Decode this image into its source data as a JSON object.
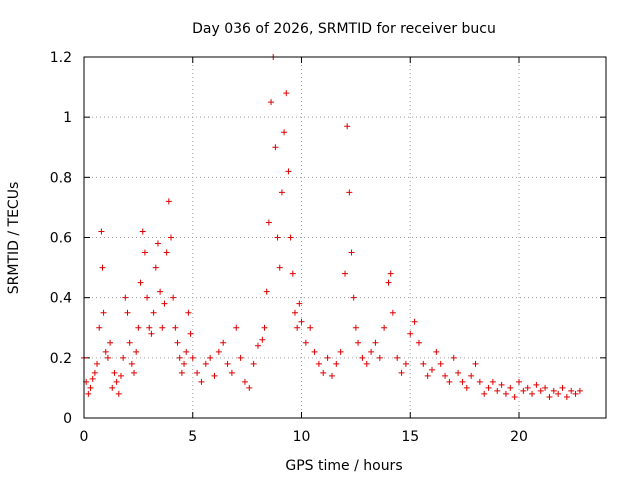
{
  "chart_data": {
    "type": "scatter",
    "title": "Day 036 of 2026, SRMTID for receiver bucu",
    "xlabel": "GPS time / hours",
    "ylabel": "SRMTID / TECUs",
    "xlim": [
      0,
      24
    ],
    "ylim": [
      0,
      1.2
    ],
    "x_ticks": [
      0,
      5,
      10,
      15,
      20
    ],
    "x_tick_labels": [
      "0",
      "5",
      "10",
      "15",
      "20"
    ],
    "y_ticks": [
      0,
      0.2,
      0.4,
      0.6,
      0.8,
      1.0,
      1.2
    ],
    "y_tick_labels": [
      "0",
      "0.2",
      "0.4",
      "0.6",
      "0.8",
      "1",
      "1.2"
    ],
    "grid": true,
    "marker": "plus",
    "series_color": "#e00000",
    "series": [
      {
        "name": "SRMTID",
        "x": [
          0.0,
          0.1,
          0.2,
          0.3,
          0.4,
          0.5,
          0.6,
          0.7,
          0.8,
          0.85,
          0.9,
          1.0,
          1.1,
          1.2,
          1.3,
          1.4,
          1.5,
          1.6,
          1.7,
          1.8,
          1.9,
          2.0,
          2.1,
          2.2,
          2.3,
          2.4,
          2.5,
          2.6,
          2.7,
          2.8,
          2.9,
          3.0,
          3.1,
          3.2,
          3.3,
          3.4,
          3.5,
          3.6,
          3.7,
          3.8,
          3.9,
          4.0,
          4.1,
          4.2,
          4.3,
          4.4,
          4.5,
          4.6,
          4.7,
          4.8,
          4.9,
          5.0,
          5.2,
          5.4,
          5.6,
          5.8,
          6.0,
          6.2,
          6.4,
          6.6,
          6.8,
          7.0,
          7.2,
          7.4,
          7.6,
          7.8,
          8.0,
          8.2,
          8.3,
          8.4,
          8.5,
          8.6,
          8.7,
          8.8,
          8.9,
          9.0,
          9.1,
          9.2,
          9.3,
          9.4,
          9.5,
          9.6,
          9.7,
          9.8,
          9.9,
          10.0,
          10.2,
          10.4,
          10.6,
          10.8,
          11.0,
          11.2,
          11.4,
          11.6,
          11.8,
          12.0,
          12.1,
          12.2,
          12.3,
          12.4,
          12.5,
          12.6,
          12.8,
          13.0,
          13.2,
          13.4,
          13.6,
          13.8,
          14.0,
          14.1,
          14.2,
          14.4,
          14.6,
          14.8,
          15.0,
          15.2,
          15.4,
          15.6,
          15.8,
          16.0,
          16.2,
          16.4,
          16.6,
          16.8,
          17.0,
          17.2,
          17.4,
          17.6,
          17.8,
          18.0,
          18.2,
          18.4,
          18.6,
          18.8,
          19.0,
          19.2,
          19.4,
          19.6,
          19.8,
          20.0,
          20.2,
          20.4,
          20.6,
          20.8,
          21.0,
          21.2,
          21.4,
          21.6,
          21.8,
          22.0,
          22.2,
          22.4,
          22.6,
          22.8
        ],
        "y": [
          0.2,
          0.12,
          0.08,
          0.1,
          0.13,
          0.15,
          0.18,
          0.3,
          0.62,
          0.5,
          0.35,
          0.22,
          0.2,
          0.25,
          0.1,
          0.15,
          0.12,
          0.08,
          0.14,
          0.2,
          0.4,
          0.35,
          0.25,
          0.18,
          0.15,
          0.22,
          0.3,
          0.45,
          0.62,
          0.55,
          0.4,
          0.3,
          0.28,
          0.35,
          0.5,
          0.58,
          0.42,
          0.3,
          0.38,
          0.55,
          0.72,
          0.6,
          0.4,
          0.3,
          0.25,
          0.2,
          0.15,
          0.18,
          0.22,
          0.35,
          0.28,
          0.2,
          0.15,
          0.12,
          0.18,
          0.2,
          0.14,
          0.22,
          0.25,
          0.18,
          0.15,
          0.3,
          0.2,
          0.12,
          0.1,
          0.18,
          0.24,
          0.26,
          0.3,
          0.42,
          0.65,
          1.05,
          1.2,
          0.9,
          0.6,
          0.5,
          0.75,
          0.95,
          1.08,
          0.82,
          0.6,
          0.48,
          0.35,
          0.3,
          0.38,
          0.32,
          0.25,
          0.3,
          0.22,
          0.18,
          0.15,
          0.2,
          0.14,
          0.18,
          0.22,
          0.48,
          0.97,
          0.75,
          0.55,
          0.4,
          0.3,
          0.25,
          0.2,
          0.18,
          0.22,
          0.25,
          0.2,
          0.3,
          0.45,
          0.48,
          0.35,
          0.2,
          0.15,
          0.18,
          0.28,
          0.32,
          0.25,
          0.18,
          0.14,
          0.16,
          0.22,
          0.18,
          0.14,
          0.12,
          0.2,
          0.15,
          0.12,
          0.1,
          0.14,
          0.18,
          0.12,
          0.08,
          0.1,
          0.12,
          0.09,
          0.11,
          0.08,
          0.1,
          0.07,
          0.12,
          0.09,
          0.1,
          0.08,
          0.11,
          0.09,
          0.1,
          0.07,
          0.09,
          0.08,
          0.1,
          0.07,
          0.09,
          0.08,
          0.09
        ]
      }
    ]
  }
}
